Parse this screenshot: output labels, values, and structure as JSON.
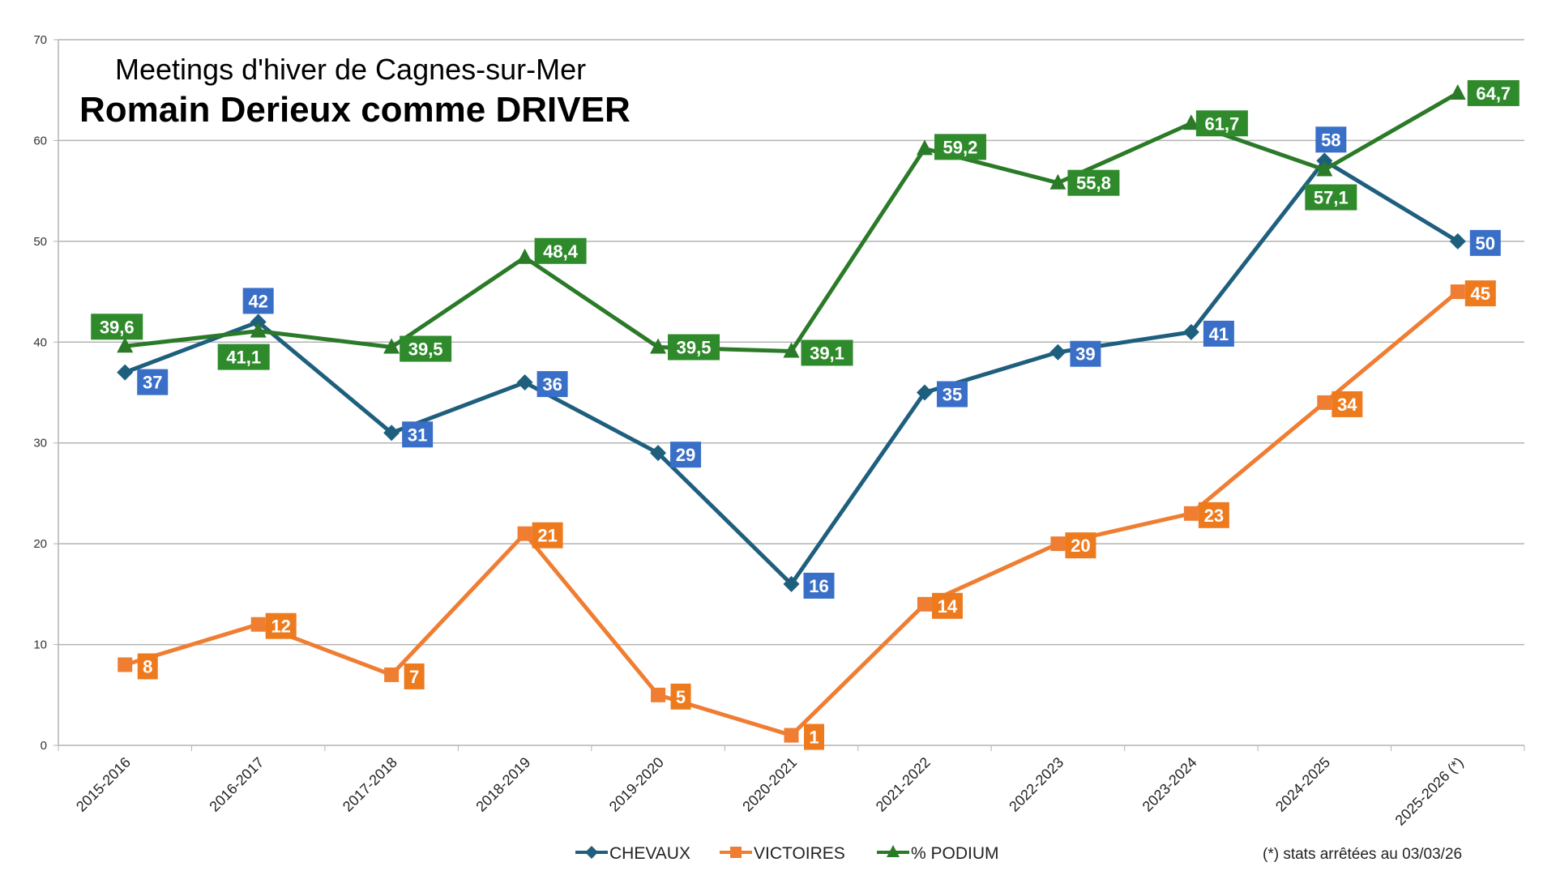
{
  "chart_data": {
    "type": "line",
    "subtitle": "Meetings d'hiver de Cagnes-sur-Mer",
    "title": "Romain Derieux comme DRIVER",
    "categories": [
      "2015-2016",
      "2016-2017",
      "2017-2018",
      "2018-2019",
      "2019-2020",
      "2020-2021",
      "2021-2022",
      "2022-2023",
      "2023-2024",
      "2024-2025",
      "2025-2026 (*)"
    ],
    "ylim": [
      0,
      70
    ],
    "yticks": [
      0,
      10,
      20,
      30,
      40,
      50,
      60,
      70
    ],
    "grid": true,
    "legend_position": "bottom",
    "series": [
      {
        "name": "CHEVAUX",
        "marker": "diamond",
        "line_color": "#1f5f7e",
        "label_color": "#3a6fc8",
        "values": [
          37,
          42,
          31,
          36,
          29,
          16,
          35,
          39,
          41,
          58,
          50
        ],
        "labels": [
          "37",
          "42",
          "31",
          "36",
          "29",
          "16",
          "35",
          "39",
          "41",
          "58",
          "50"
        ]
      },
      {
        "name": "VICTOIRES",
        "marker": "square",
        "line_color": "#ef7d32",
        "label_color": "#ee7a1e",
        "values": [
          8,
          12,
          7,
          21,
          5,
          1,
          14,
          20,
          23,
          34,
          45
        ],
        "labels": [
          "8",
          "12",
          "7",
          "21",
          "5",
          "1",
          "14",
          "20",
          "23",
          "34",
          "45"
        ]
      },
      {
        "name": "% PODIUM",
        "marker": "triangle",
        "line_color": "#2a7a27",
        "label_color": "#2f8a2b",
        "values": [
          39.6,
          41.1,
          39.5,
          48.4,
          39.5,
          39.1,
          59.2,
          55.8,
          61.7,
          57.1,
          64.7
        ],
        "labels": [
          "39,6",
          "41,1",
          "39,5",
          "48,4",
          "39,5",
          "39,1",
          "59,2",
          "55,8",
          "61,7",
          "57,1",
          "64,7"
        ]
      }
    ],
    "annotation": "(*) stats arrêtées au 03/03/26"
  }
}
